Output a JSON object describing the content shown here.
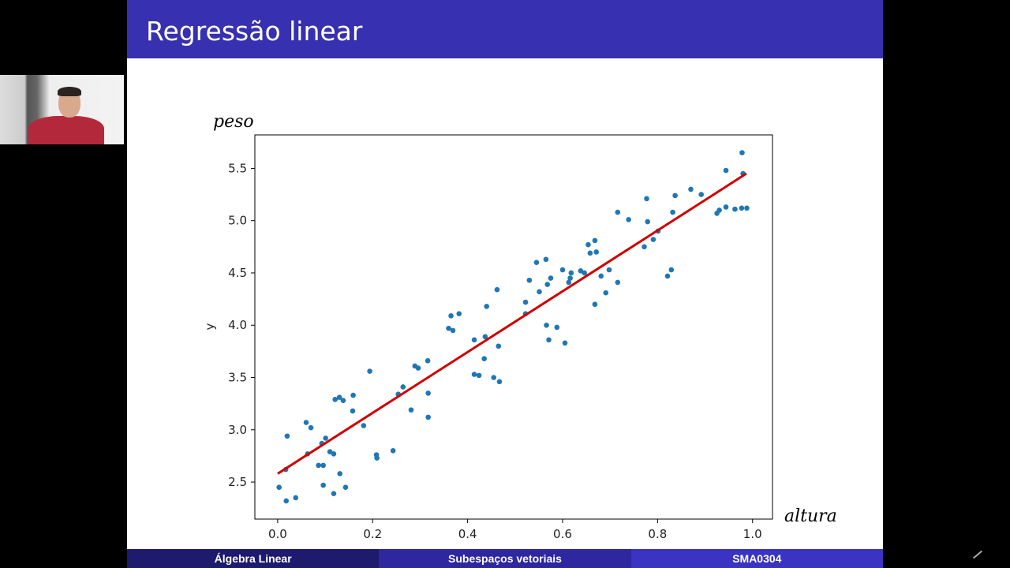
{
  "slide": {
    "title": "Regressão linear",
    "footer": [
      "Álgebra Linear",
      "Subespaços vetoriais",
      "SMA0304"
    ],
    "colors": {
      "header": "#3730b0",
      "footer_left": "#1e1a6e",
      "footer_mid": "#2e27a0",
      "footer_right": "#3b33c2"
    },
    "annotations": {
      "y_handwritten": "peso",
      "x_handwritten": "altura"
    }
  },
  "webcam": {
    "content": "presenter video"
  },
  "chart_data": {
    "type": "scatter",
    "title": "",
    "xlabel": "",
    "ylabel": "y",
    "xlim": [
      -0.048,
      1.042
    ],
    "ylim": [
      2.146,
      5.82
    ],
    "xticks": [
      "0.0",
      "0.2",
      "0.4",
      "0.6",
      "0.8",
      "1.0"
    ],
    "yticks": [
      "2.5",
      "3.0",
      "3.5",
      "4.0",
      "4.5",
      "5.0",
      "5.5"
    ],
    "grid": false,
    "point_color": "#1f77b4",
    "line_color": "#d00000",
    "fit_line": {
      "x": [
        0.0,
        0.987
      ],
      "y": [
        2.58,
        5.45
      ]
    },
    "points": [
      [
        0.003,
        2.45
      ],
      [
        0.018,
        2.32
      ],
      [
        0.038,
        2.35
      ],
      [
        0.02,
        2.94
      ],
      [
        0.017,
        2.62
      ],
      [
        0.06,
        3.07
      ],
      [
        0.07,
        3.02
      ],
      [
        0.063,
        2.77
      ],
      [
        0.086,
        2.66
      ],
      [
        0.096,
        2.66
      ],
      [
        0.096,
        2.47
      ],
      [
        0.093,
        2.87
      ],
      [
        0.101,
        2.92
      ],
      [
        0.11,
        2.79
      ],
      [
        0.118,
        2.77
      ],
      [
        0.118,
        2.39
      ],
      [
        0.131,
        2.58
      ],
      [
        0.143,
        2.45
      ],
      [
        0.121,
        3.29
      ],
      [
        0.13,
        3.31
      ],
      [
        0.138,
        3.28
      ],
      [
        0.158,
        3.18
      ],
      [
        0.159,
        3.33
      ],
      [
        0.181,
        3.04
      ],
      [
        0.194,
        3.56
      ],
      [
        0.208,
        2.76
      ],
      [
        0.209,
        2.73
      ],
      [
        0.243,
        2.8
      ],
      [
        0.254,
        3.34
      ],
      [
        0.264,
        3.41
      ],
      [
        0.281,
        3.19
      ],
      [
        0.289,
        3.61
      ],
      [
        0.296,
        3.59
      ],
      [
        0.316,
        3.66
      ],
      [
        0.317,
        3.35
      ],
      [
        0.317,
        3.12
      ],
      [
        0.36,
        3.97
      ],
      [
        0.369,
        3.95
      ],
      [
        0.365,
        4.09
      ],
      [
        0.382,
        4.11
      ],
      [
        0.414,
        3.86
      ],
      [
        0.414,
        3.53
      ],
      [
        0.424,
        3.52
      ],
      [
        0.435,
        3.68
      ],
      [
        0.437,
        3.89
      ],
      [
        0.44,
        4.18
      ],
      [
        0.455,
        3.5
      ],
      [
        0.467,
        3.46
      ],
      [
        0.465,
        3.8
      ],
      [
        0.462,
        4.34
      ],
      [
        0.522,
        4.11
      ],
      [
        0.522,
        4.22
      ],
      [
        0.53,
        4.43
      ],
      [
        0.545,
        4.6
      ],
      [
        0.551,
        4.32
      ],
      [
        0.565,
        4.63
      ],
      [
        0.566,
        4.0
      ],
      [
        0.571,
        3.86
      ],
      [
        0.588,
        3.98
      ],
      [
        0.568,
        4.39
      ],
      [
        0.575,
        4.45
      ],
      [
        0.6,
        4.53
      ],
      [
        0.605,
        3.83
      ],
      [
        0.613,
        4.41
      ],
      [
        0.616,
        4.45
      ],
      [
        0.618,
        4.5
      ],
      [
        0.638,
        4.52
      ],
      [
        0.646,
        4.5
      ],
      [
        0.654,
        4.77
      ],
      [
        0.658,
        4.69
      ],
      [
        0.668,
        4.81
      ],
      [
        0.671,
        4.7
      ],
      [
        0.668,
        4.2
      ],
      [
        0.681,
        4.47
      ],
      [
        0.691,
        4.31
      ],
      [
        0.698,
        4.53
      ],
      [
        0.716,
        4.41
      ],
      [
        0.716,
        5.08
      ],
      [
        0.739,
        5.01
      ],
      [
        0.772,
        4.75
      ],
      [
        0.779,
        4.99
      ],
      [
        0.777,
        5.21
      ],
      [
        0.791,
        4.82
      ],
      [
        0.801,
        4.9
      ],
      [
        0.821,
        4.47
      ],
      [
        0.829,
        4.53
      ],
      [
        0.832,
        5.08
      ],
      [
        0.837,
        5.24
      ],
      [
        0.87,
        5.3
      ],
      [
        0.892,
        5.25
      ],
      [
        0.925,
        5.07
      ],
      [
        0.93,
        5.1
      ],
      [
        0.944,
        5.13
      ],
      [
        0.944,
        5.48
      ],
      [
        0.963,
        5.11
      ],
      [
        0.977,
        5.12
      ],
      [
        0.988,
        5.12
      ],
      [
        0.978,
        5.65
      ],
      [
        0.98,
        5.45
      ]
    ]
  }
}
